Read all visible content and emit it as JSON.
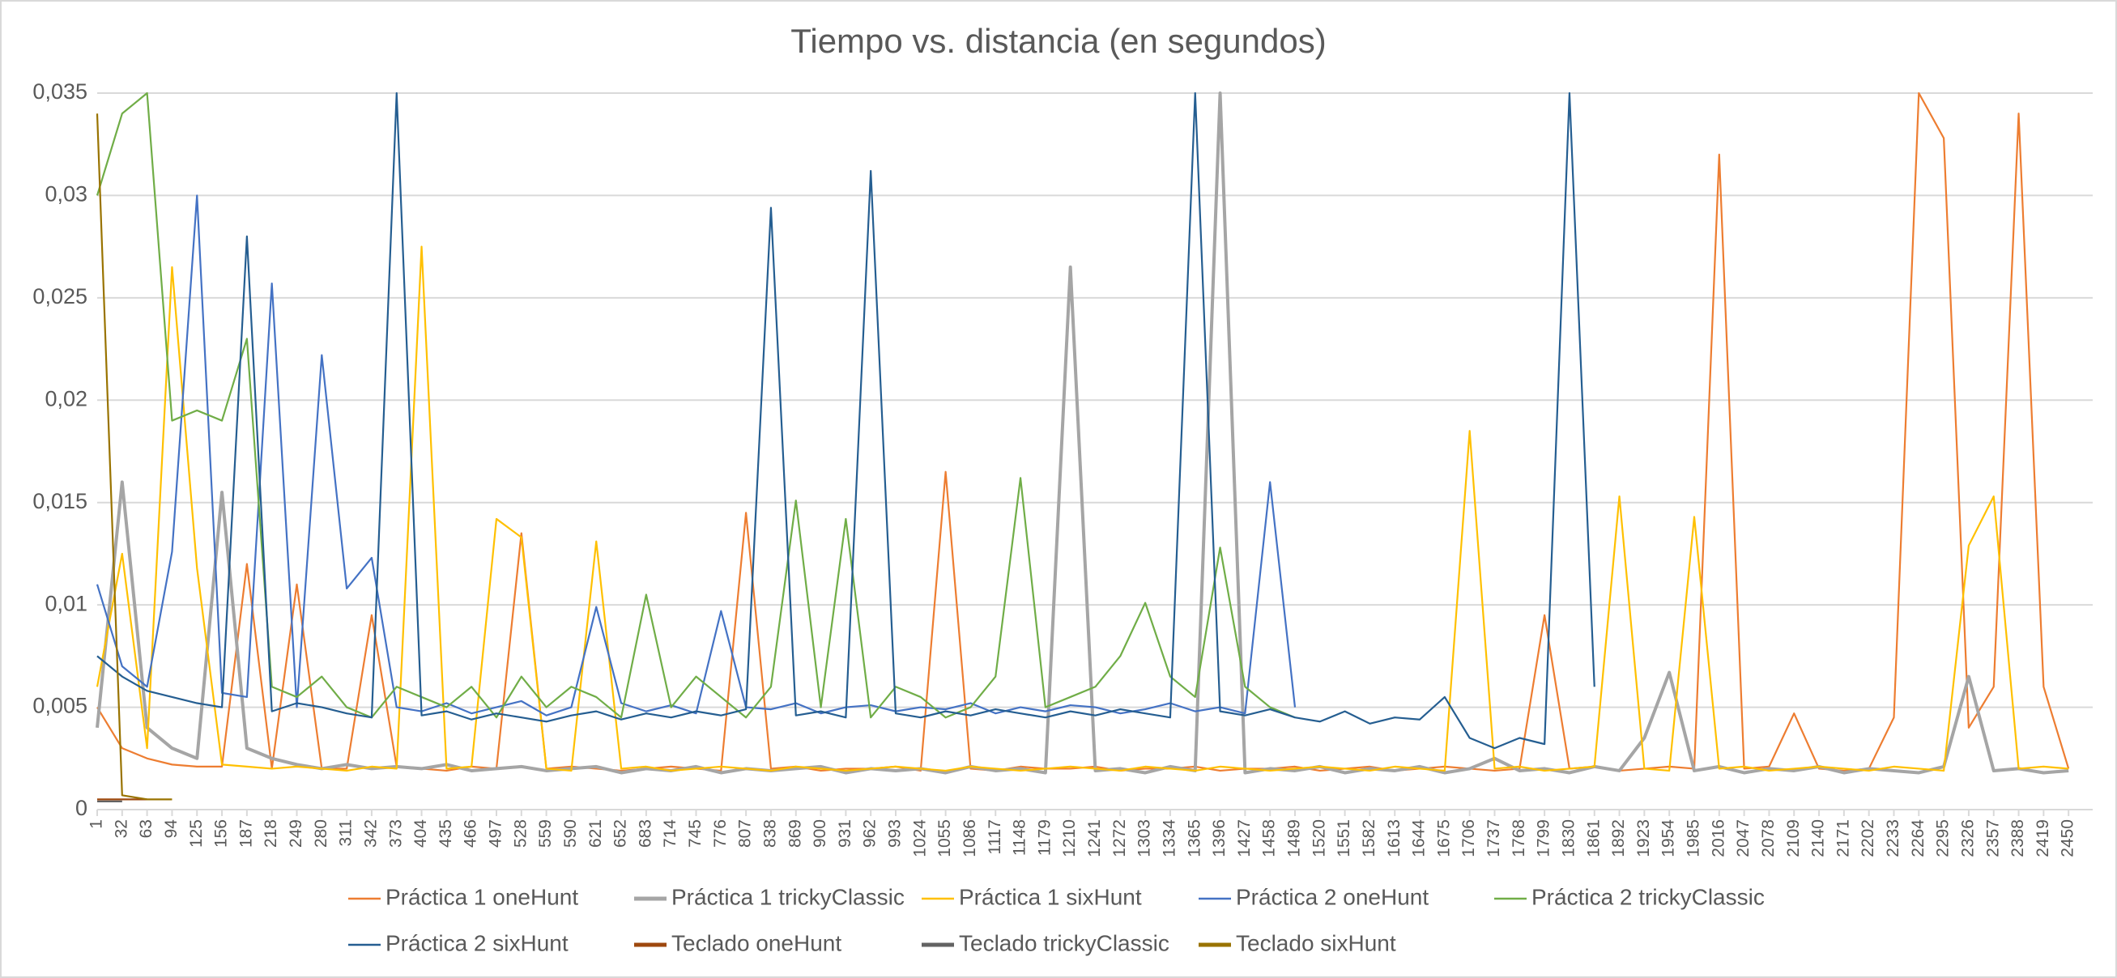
{
  "chart_data": {
    "type": "line",
    "title": "Tiempo vs. distancia (en segundos)",
    "x": [
      1,
      32,
      63,
      94,
      125,
      156,
      187,
      218,
      249,
      280,
      311,
      342,
      373,
      404,
      435,
      466,
      497,
      528,
      559,
      590,
      621,
      652,
      683,
      714,
      745,
      776,
      807,
      838,
      869,
      900,
      931,
      962,
      993,
      1024,
      1055,
      1086,
      1117,
      1148,
      1179,
      1210,
      1241,
      1272,
      1303,
      1334,
      1365,
      1396,
      1427,
      1458,
      1489,
      1520,
      1551,
      1582,
      1613,
      1644,
      1675,
      1706,
      1737,
      1768,
      1799,
      1830,
      1861,
      1892,
      1923,
      1954,
      1985,
      2016,
      2047,
      2078,
      2109,
      2140,
      2171,
      2202,
      2233,
      2264,
      2295,
      2326,
      2357,
      2388,
      2419,
      2450
    ],
    "xlim": [
      1,
      2480
    ],
    "ylim": [
      0,
      0.035
    ],
    "yticks": [
      0,
      {
        "value": 0.005,
        "label": "0,005"
      },
      {
        "value": 0.01,
        "label": "0,01"
      },
      {
        "value": 0.015,
        "label": "0,015"
      },
      {
        "value": 0.02,
        "label": "0,02"
      },
      {
        "value": 0.025,
        "label": "0,025"
      },
      {
        "value": 0.03,
        "label": "0,03"
      },
      {
        "value": 0.035,
        "label": "0,035"
      }
    ],
    "grid": true,
    "legend": "bottom",
    "series": [
      {
        "name": "Práctica 1 oneHunt",
        "color": "#ed7d31",
        "values": [
          0.005,
          0.003,
          0.0025,
          0.0022,
          0.0021,
          0.0021,
          0.012,
          0.002,
          0.011,
          0.002,
          0.002,
          0.0095,
          0.0021,
          0.002,
          0.0019,
          0.0021,
          0.002,
          0.0135,
          0.002,
          0.0021,
          0.002,
          0.0019,
          0.002,
          0.0021,
          0.002,
          0.0019,
          0.0145,
          0.002,
          0.0021,
          0.0019,
          0.002,
          0.002,
          0.0021,
          0.0019,
          0.0165,
          0.002,
          0.0019,
          0.0021,
          0.002,
          0.002,
          0.0021,
          0.0019,
          0.002,
          0.002,
          0.0021,
          0.0019,
          0.002,
          0.002,
          0.0021,
          0.0019,
          0.002,
          0.0021,
          0.0019,
          0.002,
          0.0021,
          0.002,
          0.0019,
          0.002,
          0.0095,
          0.002,
          0.0021,
          0.0019,
          0.002,
          0.0021,
          0.002,
          0.032,
          0.002,
          0.0021,
          0.0047,
          0.002,
          0.0019,
          0.002,
          0.0045,
          0.035,
          0.0328,
          0.004,
          0.006,
          0.034,
          0.006,
          0.002
        ]
      },
      {
        "name": "Práctica 1 trickyClassic",
        "color": "#a5a5a5",
        "values": [
          0.004,
          0.016,
          0.004,
          0.003,
          0.0025,
          0.0155,
          0.003,
          0.0025,
          0.0022,
          0.002,
          0.0022,
          0.002,
          0.0021,
          0.002,
          0.0022,
          0.0019,
          0.002,
          0.0021,
          0.0019,
          0.002,
          0.0021,
          0.0018,
          0.002,
          0.0019,
          0.0021,
          0.0018,
          0.002,
          0.0019,
          0.002,
          0.0021,
          0.0018,
          0.002,
          0.0019,
          0.002,
          0.0018,
          0.0021,
          0.0019,
          0.002,
          0.0018,
          0.0265,
          0.0019,
          0.002,
          0.0018,
          0.0021,
          0.0019,
          0.035,
          0.0018,
          0.002,
          0.0019,
          0.0021,
          0.0018,
          0.002,
          0.0019,
          0.0021,
          0.0018,
          0.002,
          0.0025,
          0.0019,
          0.002,
          0.0018,
          0.0021,
          0.0019,
          0.0035,
          0.0067,
          0.0019,
          0.0021,
          0.0018,
          0.002,
          0.0019,
          0.0021,
          0.0018,
          0.002,
          0.0019,
          0.0018,
          0.0021,
          0.0065,
          0.0019,
          0.002,
          0.0018,
          0.0019
        ]
      },
      {
        "name": "Práctica 1 sixHunt",
        "color": "#ffc000",
        "values": [
          0.006,
          0.0125,
          0.003,
          0.0265,
          0.0118,
          0.0022,
          0.0021,
          0.002,
          0.0021,
          0.002,
          0.0019,
          0.0021,
          0.002,
          0.0275,
          0.002,
          0.0021,
          0.0142,
          0.0133,
          0.002,
          0.0019,
          0.0131,
          0.002,
          0.0021,
          0.0019,
          0.002,
          0.0021,
          0.002,
          0.0019,
          0.0021,
          0.002,
          0.0019,
          0.002,
          0.0021,
          0.002,
          0.0019,
          0.0021,
          0.002,
          0.0019,
          0.002,
          0.0021,
          0.002,
          0.0019,
          0.0021,
          0.002,
          0.0019,
          0.0021,
          0.002,
          0.0019,
          0.002,
          0.0021,
          0.002,
          0.0019,
          0.0021,
          0.002,
          0.0019,
          0.0185,
          0.002,
          0.0021,
          0.0019,
          0.002,
          0.0021,
          0.0153,
          0.002,
          0.0019,
          0.0143,
          0.002,
          0.0021,
          0.0019,
          0.002,
          0.0021,
          0.002,
          0.0019,
          0.0021,
          0.002,
          0.0019,
          0.0129,
          0.0153,
          0.002,
          0.0021,
          0.002
        ]
      },
      {
        "name": "Práctica 2 oneHunt",
        "color": "#4472c4",
        "values": [
          0.011,
          0.007,
          0.006,
          0.0126,
          0.03,
          0.0057,
          0.0055,
          0.0257,
          0.005,
          0.0222,
          0.0108,
          0.0123,
          0.005,
          0.0048,
          0.0052,
          0.0047,
          0.005,
          0.0053,
          0.0046,
          0.005,
          0.0099,
          0.0052,
          0.0048,
          0.0051,
          0.0047,
          0.0097,
          0.005,
          0.0049,
          0.0052,
          0.0047,
          0.005,
          0.0051,
          0.0048,
          0.005,
          0.0049,
          0.0052,
          0.0047,
          0.005,
          0.0048,
          0.0051,
          0.005,
          0.0047,
          0.0049,
          0.0052,
          0.0048,
          0.005,
          0.0047,
          0.016,
          0.005,
          null,
          null,
          null,
          null,
          null,
          null,
          null,
          null,
          null,
          null,
          null,
          null,
          null,
          null,
          null,
          null,
          null,
          null,
          null,
          null,
          null,
          null,
          null,
          null,
          null,
          null,
          null,
          null,
          null,
          null,
          null
        ]
      },
      {
        "name": "Práctica 2 trickyClassic",
        "color": "#70ad47",
        "values": [
          0.03,
          0.034,
          0.035,
          0.019,
          0.0195,
          0.019,
          0.023,
          0.006,
          0.0055,
          0.0065,
          0.005,
          0.0045,
          0.006,
          0.0055,
          0.005,
          0.006,
          0.0045,
          0.0065,
          0.005,
          0.006,
          0.0055,
          0.0045,
          0.0105,
          0.005,
          0.0065,
          0.0055,
          0.0045,
          0.006,
          0.0151,
          0.005,
          0.0142,
          0.0045,
          0.006,
          0.0055,
          0.0045,
          0.005,
          0.0065,
          0.0162,
          0.005,
          0.0055,
          0.006,
          0.0075,
          0.0101,
          0.0065,
          0.0055,
          0.0128,
          0.006,
          0.005,
          0.0045,
          null,
          null,
          null,
          null,
          null,
          null,
          null,
          null,
          null,
          null,
          null,
          null,
          null,
          null,
          null,
          null,
          null,
          null,
          null,
          null,
          null,
          null,
          null,
          null,
          null,
          null,
          null,
          null,
          null,
          null,
          null
        ]
      },
      {
        "name": "Práctica 2 sixHunt",
        "color": "#255e91",
        "values": [
          0.0075,
          0.0065,
          0.0058,
          0.0055,
          0.0052,
          0.005,
          0.028,
          0.0048,
          0.0052,
          0.005,
          0.0047,
          0.0045,
          0.035,
          0.0046,
          0.0048,
          0.0044,
          0.0047,
          0.0045,
          0.0043,
          0.0046,
          0.0048,
          0.0044,
          0.0047,
          0.0045,
          0.0048,
          0.0046,
          0.0049,
          0.0294,
          0.0046,
          0.0048,
          0.0045,
          0.0312,
          0.0047,
          0.0045,
          0.0048,
          0.0046,
          0.0049,
          0.0047,
          0.0045,
          0.0048,
          0.0046,
          0.0049,
          0.0047,
          0.0045,
          0.035,
          0.0048,
          0.0046,
          0.0049,
          0.0045,
          0.0043,
          0.0048,
          0.0042,
          0.0045,
          0.0044,
          0.0055,
          0.0035,
          0.003,
          0.0035,
          0.0032,
          0.035,
          0.006,
          null,
          null,
          null,
          null,
          null,
          null,
          null,
          null,
          null,
          null,
          null,
          null,
          null,
          null,
          null,
          null,
          null,
          null,
          null
        ]
      },
      {
        "name": "Teclado oneHunt",
        "color": "#9e480e",
        "values": [
          0.0005,
          0.0005,
          0.0005,
          null,
          null,
          null,
          null,
          null,
          null,
          null,
          null,
          null,
          null,
          null,
          null,
          null,
          null,
          null,
          null,
          null,
          null,
          null,
          null,
          null,
          null,
          null,
          null,
          null,
          null,
          null,
          null,
          null,
          null,
          null,
          null,
          null,
          null,
          null,
          null,
          null,
          null,
          null,
          null,
          null,
          null,
          null,
          null,
          null,
          null,
          null,
          null,
          null,
          null,
          null,
          null,
          null,
          null,
          null,
          null,
          null,
          null,
          null,
          null,
          null,
          null,
          null,
          null,
          null,
          null,
          null,
          null,
          null,
          null,
          null,
          null,
          null,
          null,
          null,
          null,
          null
        ]
      },
      {
        "name": "Teclado trickyClassic",
        "color": "#636363",
        "values": [
          0.0004,
          0.0004,
          null,
          null,
          null,
          null,
          null,
          null,
          null,
          null,
          null,
          null,
          null,
          null,
          null,
          null,
          null,
          null,
          null,
          null,
          null,
          null,
          null,
          null,
          null,
          null,
          null,
          null,
          null,
          null,
          null,
          null,
          null,
          null,
          null,
          null,
          null,
          null,
          null,
          null,
          null,
          null,
          null,
          null,
          null,
          null,
          null,
          null,
          null,
          null,
          null,
          null,
          null,
          null,
          null,
          null,
          null,
          null,
          null,
          null,
          null,
          null,
          null,
          null,
          null,
          null,
          null,
          null,
          null,
          null,
          null,
          null,
          null,
          null,
          null,
          null,
          null,
          null,
          null,
          null
        ]
      },
      {
        "name": "Teclado sixHunt",
        "color": "#997300",
        "values": [
          0.034,
          0.0007,
          0.0005,
          0.0005,
          null,
          null,
          null,
          null,
          null,
          null,
          null,
          null,
          null,
          null,
          null,
          null,
          null,
          null,
          null,
          null,
          null,
          null,
          null,
          null,
          null,
          null,
          null,
          null,
          null,
          null,
          null,
          null,
          null,
          null,
          null,
          null,
          null,
          null,
          null,
          null,
          null,
          null,
          null,
          null,
          null,
          null,
          null,
          null,
          null,
          null,
          null,
          null,
          null,
          null,
          null,
          null,
          null,
          null,
          null,
          null,
          null,
          null,
          null,
          null,
          null,
          null,
          null,
          null,
          null,
          null,
          null,
          null,
          null,
          null,
          null,
          null,
          null,
          null,
          null,
          null
        ]
      }
    ]
  }
}
